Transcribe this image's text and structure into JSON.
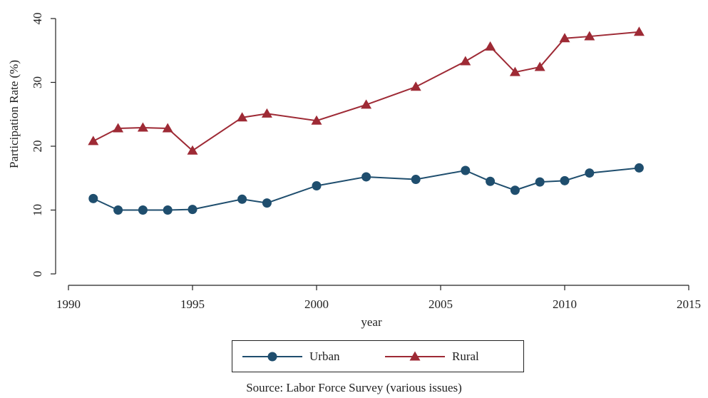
{
  "chart_data": {
    "type": "line",
    "title": "",
    "xlabel": "year",
    "ylabel": "Participation Rate (%)",
    "xlim": [
      1990,
      2015
    ],
    "ylim": [
      0,
      40
    ],
    "xticks": [
      1990,
      1995,
      2000,
      2005,
      2010,
      2015
    ],
    "yticks": [
      0,
      10,
      20,
      30,
      40
    ],
    "grid": false,
    "legend_position": "bottom",
    "series": [
      {
        "name": "Urban",
        "color": "#1f4e6e",
        "marker": "circle",
        "x": [
          1991,
          1992,
          1993,
          1994,
          1995,
          1997,
          1998,
          2000,
          2002,
          2004,
          2006,
          2007,
          2008,
          2009,
          2010,
          2011,
          2013
        ],
        "y": [
          11.8,
          10.0,
          10.0,
          10.0,
          10.1,
          11.7,
          11.1,
          13.8,
          15.2,
          14.8,
          16.2,
          14.5,
          13.1,
          14.4,
          14.6,
          15.8,
          16.6
        ]
      },
      {
        "name": "Rural",
        "color": "#9e2a35",
        "marker": "triangle",
        "x": [
          1991,
          1992,
          1993,
          1994,
          1995,
          1997,
          1998,
          2000,
          2002,
          2004,
          2006,
          2007,
          2008,
          2009,
          2010,
          2011,
          2013
        ],
        "y": [
          20.8,
          22.8,
          22.9,
          22.8,
          19.3,
          24.5,
          25.1,
          24.0,
          26.5,
          29.3,
          33.3,
          35.6,
          31.6,
          32.4,
          36.9,
          37.2,
          37.9
        ]
      }
    ]
  },
  "source": "Source: Labor Force Survey (various issues)"
}
